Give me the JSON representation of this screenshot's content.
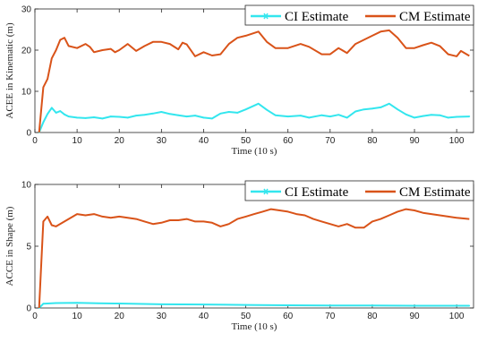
{
  "chart_data": [
    {
      "type": "line",
      "xlabel": "Time (10 s)",
      "ylabel": "ACEE in Kinematic (m)",
      "xlim": [
        0,
        104
      ],
      "ylim": [
        0,
        30
      ],
      "xticks": [
        0,
        10,
        20,
        30,
        40,
        50,
        60,
        70,
        80,
        90,
        100
      ],
      "yticks": [
        0,
        10,
        20,
        30
      ],
      "grid": false,
      "legend": "top-right",
      "series": [
        {
          "name": "CI Estimate",
          "color": "#33e6ee",
          "x": [
            1,
            2,
            3,
            4,
            5,
            6,
            7,
            8,
            10,
            12,
            14,
            16,
            18,
            20,
            22,
            24,
            26,
            28,
            30,
            32,
            34,
            36,
            38,
            40,
            42,
            44,
            46,
            48,
            50,
            53,
            55,
            57,
            60,
            63,
            65,
            68,
            70,
            72,
            74,
            76,
            78,
            80,
            82,
            84,
            86,
            88,
            90,
            92,
            94,
            96,
            98,
            100,
            103
          ],
          "values": [
            0,
            2.5,
            4.5,
            6,
            4.8,
            5.2,
            4.4,
            3.9,
            3.6,
            3.5,
            3.7,
            3.4,
            3.9,
            3.8,
            3.6,
            4.1,
            4.3,
            4.6,
            5,
            4.5,
            4.2,
            3.9,
            4.1,
            3.6,
            3.4,
            4.6,
            5,
            4.8,
            5.6,
            7,
            5.5,
            4.2,
            3.9,
            4.1,
            3.6,
            4.2,
            3.9,
            4.3,
            3.6,
            5.1,
            5.6,
            5.8,
            6.1,
            7,
            5.6,
            4.4,
            3.6,
            4,
            4.3,
            4.2,
            3.6,
            3.8,
            3.9
          ]
        },
        {
          "name": "CM Estimate",
          "color": "#d95319",
          "x": [
            1,
            2,
            3,
            4,
            5,
            6,
            7,
            8,
            10,
            12,
            13,
            14,
            16,
            18,
            19,
            20,
            22,
            24,
            26,
            28,
            30,
            32,
            34,
            35,
            36,
            38,
            40,
            42,
            44,
            46,
            48,
            50,
            53,
            55,
            57,
            60,
            63,
            65,
            68,
            70,
            72,
            74,
            76,
            78,
            80,
            82,
            84,
            86,
            88,
            90,
            92,
            94,
            96,
            98,
            100,
            101,
            103
          ],
          "values": [
            0,
            11,
            13,
            18,
            20,
            22.5,
            23,
            21,
            20.5,
            21.5,
            20.8,
            19.5,
            20,
            20.3,
            19.5,
            20,
            21.5,
            19.8,
            21,
            22,
            22,
            21.5,
            20.2,
            21.8,
            21.4,
            18.5,
            19.5,
            18.7,
            19,
            21.5,
            23,
            23.5,
            24.5,
            22,
            20.5,
            20.5,
            21.5,
            20.8,
            19,
            19,
            20.5,
            19.3,
            21.5,
            22.5,
            23.5,
            24.5,
            24.8,
            23,
            20.5,
            20.5,
            21.2,
            21.8,
            21,
            19,
            18.5,
            19.8,
            18.6
          ]
        }
      ]
    },
    {
      "type": "line",
      "xlabel": "Time (10 s)",
      "ylabel": "ACCE in Shape (m)",
      "xlim": [
        0,
        104
      ],
      "ylim": [
        0,
        10
      ],
      "xticks": [
        0,
        10,
        20,
        30,
        40,
        50,
        60,
        70,
        80,
        90,
        100
      ],
      "yticks": [
        0,
        5,
        10
      ],
      "grid": false,
      "legend": "top-right",
      "series": [
        {
          "name": "CI Estimate",
          "color": "#33e6ee",
          "x": [
            1,
            2,
            5,
            10,
            15,
            20,
            30,
            40,
            50,
            60,
            70,
            80,
            90,
            100,
            103
          ],
          "values": [
            0,
            0.35,
            0.4,
            0.42,
            0.38,
            0.36,
            0.3,
            0.28,
            0.25,
            0.22,
            0.2,
            0.2,
            0.18,
            0.18,
            0.18
          ]
        },
        {
          "name": "CM Estimate",
          "color": "#d95319",
          "x": [
            1,
            2,
            3,
            4,
            5,
            7,
            9,
            10,
            12,
            14,
            16,
            18,
            20,
            22,
            24,
            26,
            28,
            30,
            32,
            34,
            36,
            38,
            40,
            42,
            44,
            46,
            48,
            50,
            52,
            54,
            56,
            58,
            60,
            62,
            64,
            66,
            68,
            70,
            72,
            74,
            76,
            78,
            80,
            82,
            84,
            86,
            88,
            90,
            92,
            94,
            96,
            98,
            100,
            103
          ],
          "values": [
            0,
            7,
            7.4,
            6.7,
            6.6,
            7,
            7.4,
            7.6,
            7.5,
            7.6,
            7.4,
            7.3,
            7.4,
            7.3,
            7.2,
            7,
            6.8,
            6.9,
            7.1,
            7.1,
            7.2,
            7,
            7,
            6.9,
            6.6,
            6.8,
            7.2,
            7.4,
            7.6,
            7.8,
            8,
            7.9,
            7.8,
            7.6,
            7.5,
            7.2,
            7,
            6.8,
            6.6,
            6.8,
            6.5,
            6.5,
            7,
            7.2,
            7.5,
            7.8,
            8,
            7.9,
            7.7,
            7.6,
            7.5,
            7.4,
            7.3,
            7.2
          ]
        }
      ]
    }
  ]
}
